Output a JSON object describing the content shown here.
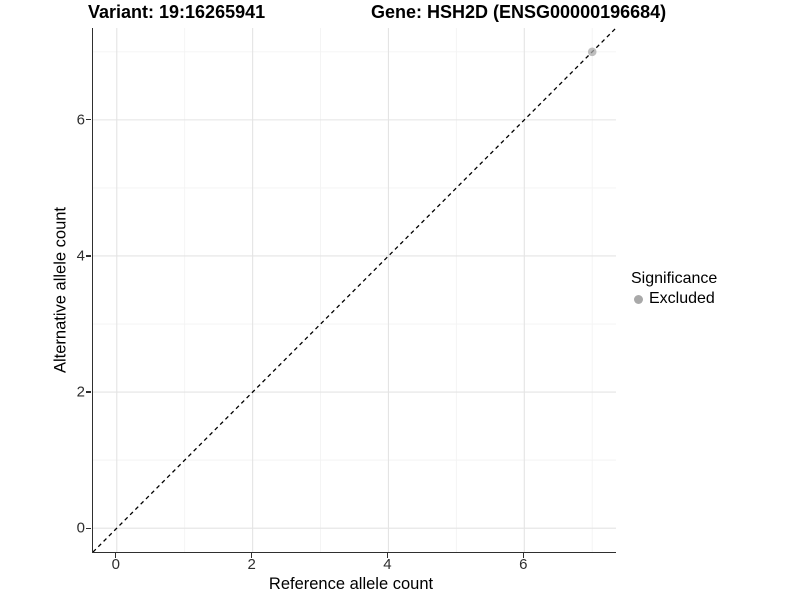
{
  "titles": {
    "variant": "Variant: 19:16265941",
    "gene": "Gene: HSH2D (ENSG00000196684)"
  },
  "chart_data": {
    "type": "scatter",
    "xlabel": "Reference allele count",
    "ylabel": "Alternative allele count",
    "xlim": [
      -0.35,
      7.35
    ],
    "ylim": [
      -0.35,
      7.35
    ],
    "x_ticks": [
      0,
      2,
      4,
      6
    ],
    "y_ticks": [
      0,
      2,
      4,
      6
    ],
    "x_minor_gridlines": [
      1,
      3,
      5,
      7
    ],
    "y_minor_gridlines": [
      1,
      3,
      5,
      7
    ],
    "grid": true,
    "reference_line": {
      "type": "identity",
      "style": "dashed",
      "color": "#000000"
    },
    "series": [
      {
        "name": "Excluded",
        "color": "#a9a9a9",
        "points": [
          {
            "x": 7,
            "y": 7
          }
        ]
      }
    ],
    "legend": {
      "title": "Significance",
      "position": "right",
      "items": [
        {
          "label": "Excluded",
          "color": "#a9a9a9"
        }
      ]
    }
  },
  "colors": {
    "grid_major": "#e4e4e4",
    "grid_minor": "#f3f3f3",
    "axis": "#2f2f2f",
    "tick_text": "#2e2e2e",
    "point": "#a9a9a9"
  }
}
